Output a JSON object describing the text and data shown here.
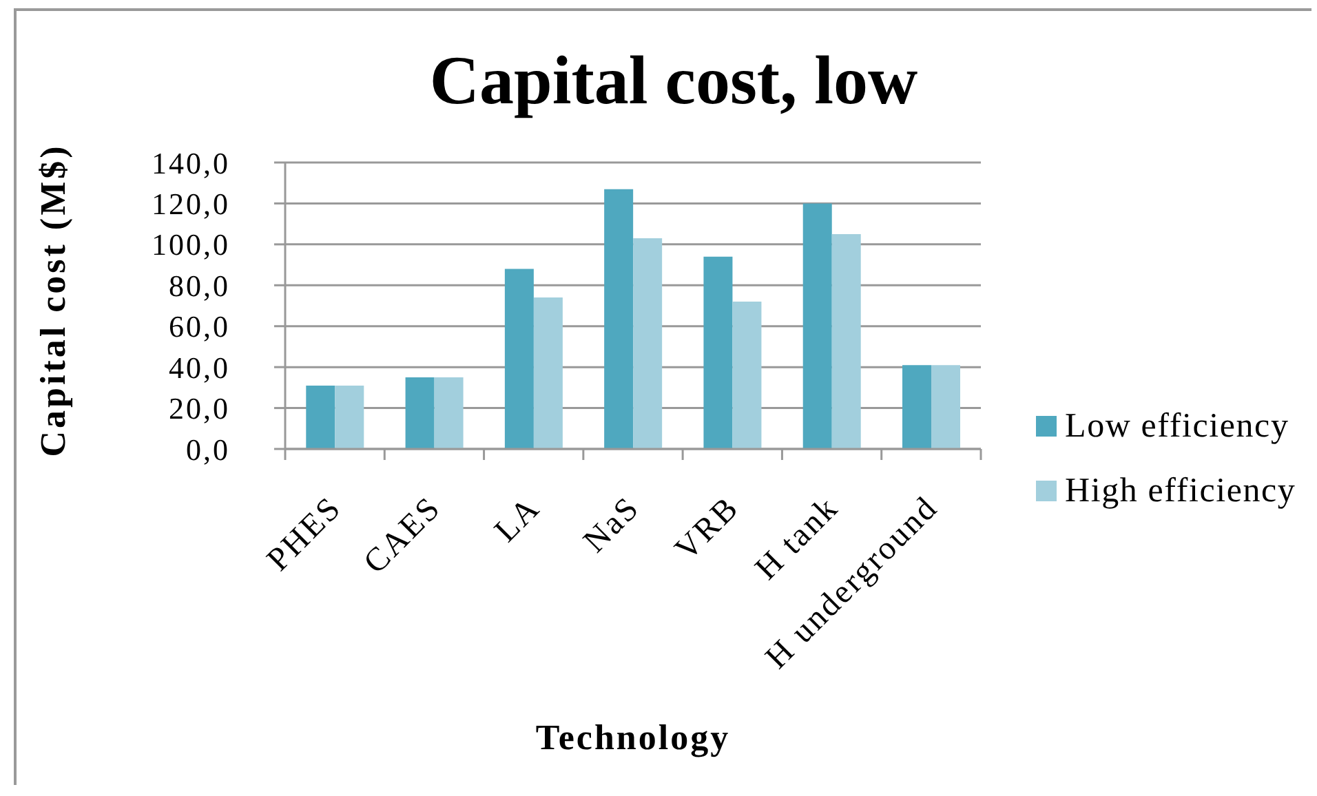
{
  "chart_data": {
    "type": "bar",
    "title": "Capital cost, low",
    "xlabel": "Technology",
    "ylabel": "Capital cost (M$)",
    "categories": [
      "PHES",
      "CAES",
      "LA",
      "NaS",
      "VRB",
      "H tank",
      "H underground"
    ],
    "series": [
      {
        "name": "Low efficiency",
        "color": "#4fa8bf",
        "values": [
          31,
          35,
          88,
          127,
          94,
          120,
          41
        ]
      },
      {
        "name": "High efficiency",
        "color": "#a2cfdd",
        "values": [
          31,
          35,
          74,
          103,
          72,
          105,
          41
        ]
      }
    ],
    "ylim": [
      0,
      140
    ],
    "yticks": [
      {
        "value": 0,
        "label": "0,0"
      },
      {
        "value": 20,
        "label": "20,0"
      },
      {
        "value": 40,
        "label": "40,0"
      },
      {
        "value": 60,
        "label": "60,0"
      },
      {
        "value": 80,
        "label": "80,0"
      },
      {
        "value": 100,
        "label": "100,0"
      },
      {
        "value": 120,
        "label": "120,0"
      },
      {
        "value": 140,
        "label": "140,0"
      }
    ],
    "grid": "y",
    "legend": "right"
  }
}
